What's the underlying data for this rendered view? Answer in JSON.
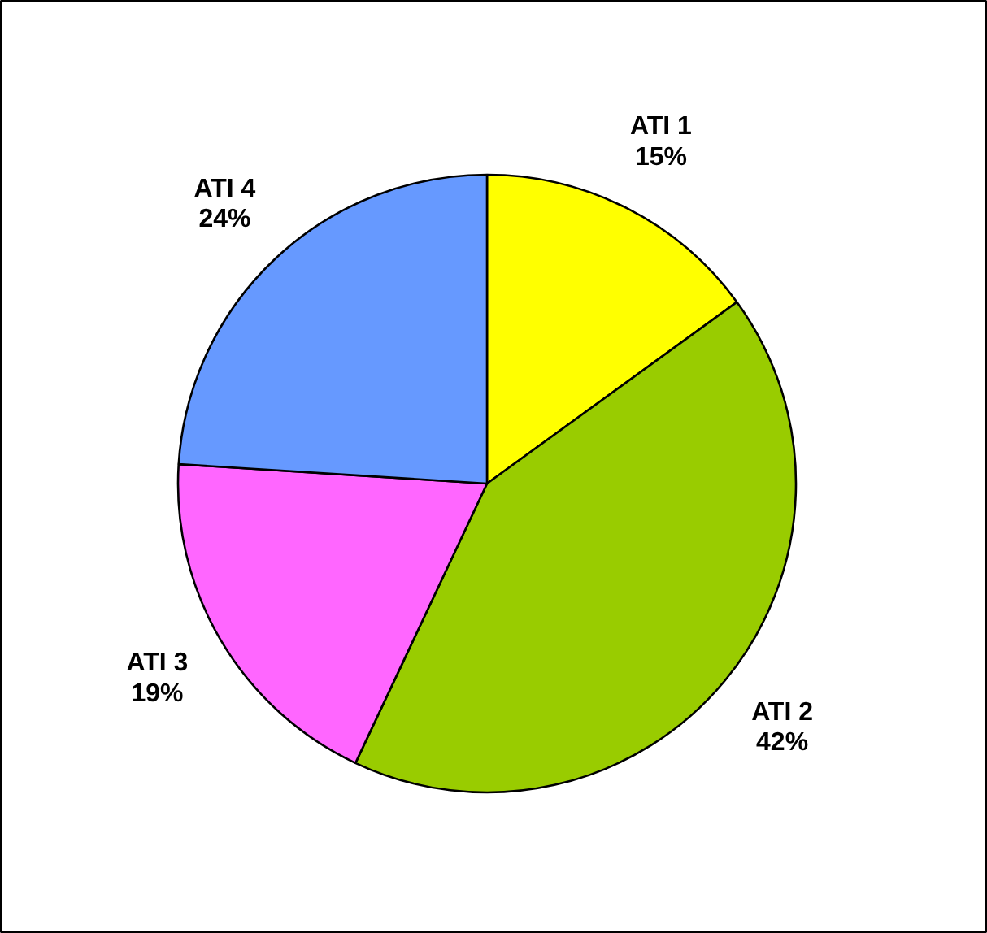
{
  "chart_data": {
    "type": "pie",
    "categories": [
      "ATI 1",
      "ATI 2",
      "ATI 3",
      "ATI 4"
    ],
    "values": [
      15,
      42,
      19,
      24
    ],
    "colors": [
      "#ffff00",
      "#99cc00",
      "#ff66ff",
      "#6699ff"
    ],
    "value_labels": [
      "15%",
      "42%",
      "19%",
      "24%"
    ]
  }
}
